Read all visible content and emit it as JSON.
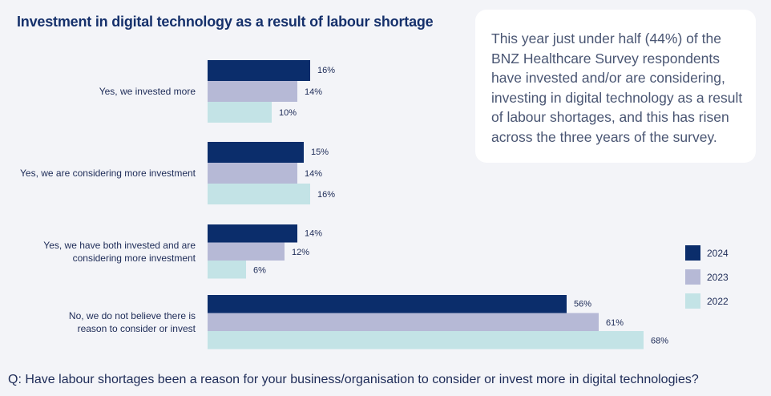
{
  "chart_data": {
    "type": "bar",
    "orientation": "horizontal",
    "title": "Investment in digital technology as a result of labour shortage",
    "categories": [
      [
        "Yes, we invested more"
      ],
      [
        "Yes, we are considering more investment"
      ],
      [
        "Yes, we have both invested and are",
        "considering more investment"
      ],
      [
        "No, we do not believe there is",
        "reason to consider or invest"
      ]
    ],
    "series": [
      {
        "name": "2024",
        "color": "#0b2d6b",
        "values": [
          16,
          15,
          14,
          56
        ]
      },
      {
        "name": "2023",
        "color": "#b6b9d6",
        "values": [
          14,
          14,
          12,
          61
        ]
      },
      {
        "name": "2022",
        "color": "#c3e3e6",
        "values": [
          10,
          16,
          6,
          68
        ]
      }
    ],
    "value_suffix": "%",
    "legend_position": "right",
    "xlabel": "",
    "ylabel": "",
    "grid": false
  },
  "callout": "This year just under half (44%) of the BNZ Healthcare Survey respondents have invested and/or are considering, investing in digital technology as a result of labour shortages, and this has risen across the three years of the survey.",
  "question": "Q:  Have labour shortages been a reason for your business/organisation to consider or invest more in digital technologies?"
}
